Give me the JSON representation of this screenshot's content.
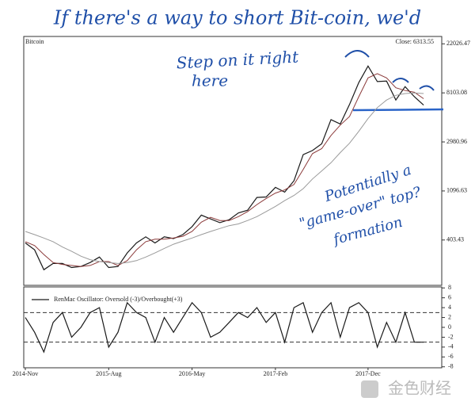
{
  "chart_data": [
    {
      "type": "line",
      "title": "Bitcoin",
      "close_label": "Close: 6313.55",
      "log_scale": true,
      "annotations": [
        "If there's a way to short Bit-coin, we'd",
        "Step on it right",
        "here",
        "Potentially a",
        "\"game-over\" top?",
        "formation"
      ],
      "ylim": [
        160,
        25600
      ],
      "yticks": [
        22026.47,
        8103.08,
        2980.96,
        1096.63,
        403.43
      ],
      "series": [
        {
          "color": "#1a1a1a",
          "values": [
            380,
            330,
            220,
            250,
            250,
            230,
            235,
            255,
            285,
            230,
            235,
            310,
            380,
            430,
            380,
            430,
            415,
            450,
            530,
            670,
            620,
            575,
            610,
            700,
            740,
            960,
            970,
            1180,
            1070,
            1350,
            2300,
            2500,
            2870,
            4700,
            4300,
            6400,
            10000,
            14000,
            10200,
            10300,
            7000,
            9200,
            7500,
            6313.55
          ]
        },
        {
          "color": "#8b3a3a",
          "values": [
            390,
            360,
            300,
            255,
            245,
            240,
            235,
            240,
            260,
            260,
            240,
            265,
            330,
            390,
            410,
            410,
            420,
            435,
            480,
            580,
            640,
            600,
            600,
            650,
            720,
            830,
            940,
            1050,
            1120,
            1250,
            1700,
            2350,
            2600,
            3400,
            4200,
            5000,
            7500,
            11000,
            12000,
            11000,
            9000,
            8500,
            8200,
            7200
          ]
        },
        {
          "color": "#9a9a9a",
          "values": [
            480,
            450,
            420,
            390,
            350,
            320,
            290,
            270,
            260,
            255,
            250,
            255,
            265,
            285,
            310,
            340,
            370,
            395,
            420,
            450,
            480,
            510,
            540,
            560,
            600,
            650,
            720,
            800,
            900,
            1000,
            1150,
            1400,
            1650,
            1950,
            2400,
            2900,
            3700,
            4800,
            6000,
            7000,
            7700,
            8000,
            8100,
            8000
          ]
        }
      ]
    },
    {
      "type": "line",
      "watermark": "金色财经",
      "categories": [
        "2014-Nov",
        null,
        null,
        null,
        null,
        null,
        null,
        null,
        null,
        "2015-Aug",
        null,
        null,
        null,
        null,
        null,
        null,
        null,
        null,
        "2016-May",
        null,
        null,
        null,
        null,
        null,
        null,
        null,
        null,
        "2017-Feb",
        null,
        null,
        null,
        null,
        null,
        null,
        null,
        null,
        null,
        "2017-Dec",
        null,
        null,
        null,
        null,
        null,
        null
      ],
      "ylim": [
        -8.2,
        8.2
      ],
      "yticks": [
        8,
        6,
        4,
        2,
        0,
        -2,
        -4,
        -6,
        -8
      ],
      "reference_lines": [
        3,
        -3
      ],
      "series": [
        {
          "name": "RenMac Oscillator: Oversold (-3)/Overbought(+3)",
          "color": "#1a1a1a",
          "values": [
            2,
            -1,
            -5,
            1,
            3,
            -2,
            0,
            3,
            4,
            -4,
            -1,
            5,
            3,
            2,
            -3,
            2,
            -1,
            2,
            5,
            3,
            -2,
            -1,
            1,
            3,
            2,
            4,
            1,
            3,
            -3,
            4,
            5,
            -1,
            3,
            5,
            -2,
            4,
            5,
            3,
            -4,
            1,
            -3,
            3,
            -3,
            -3
          ]
        }
      ]
    }
  ]
}
